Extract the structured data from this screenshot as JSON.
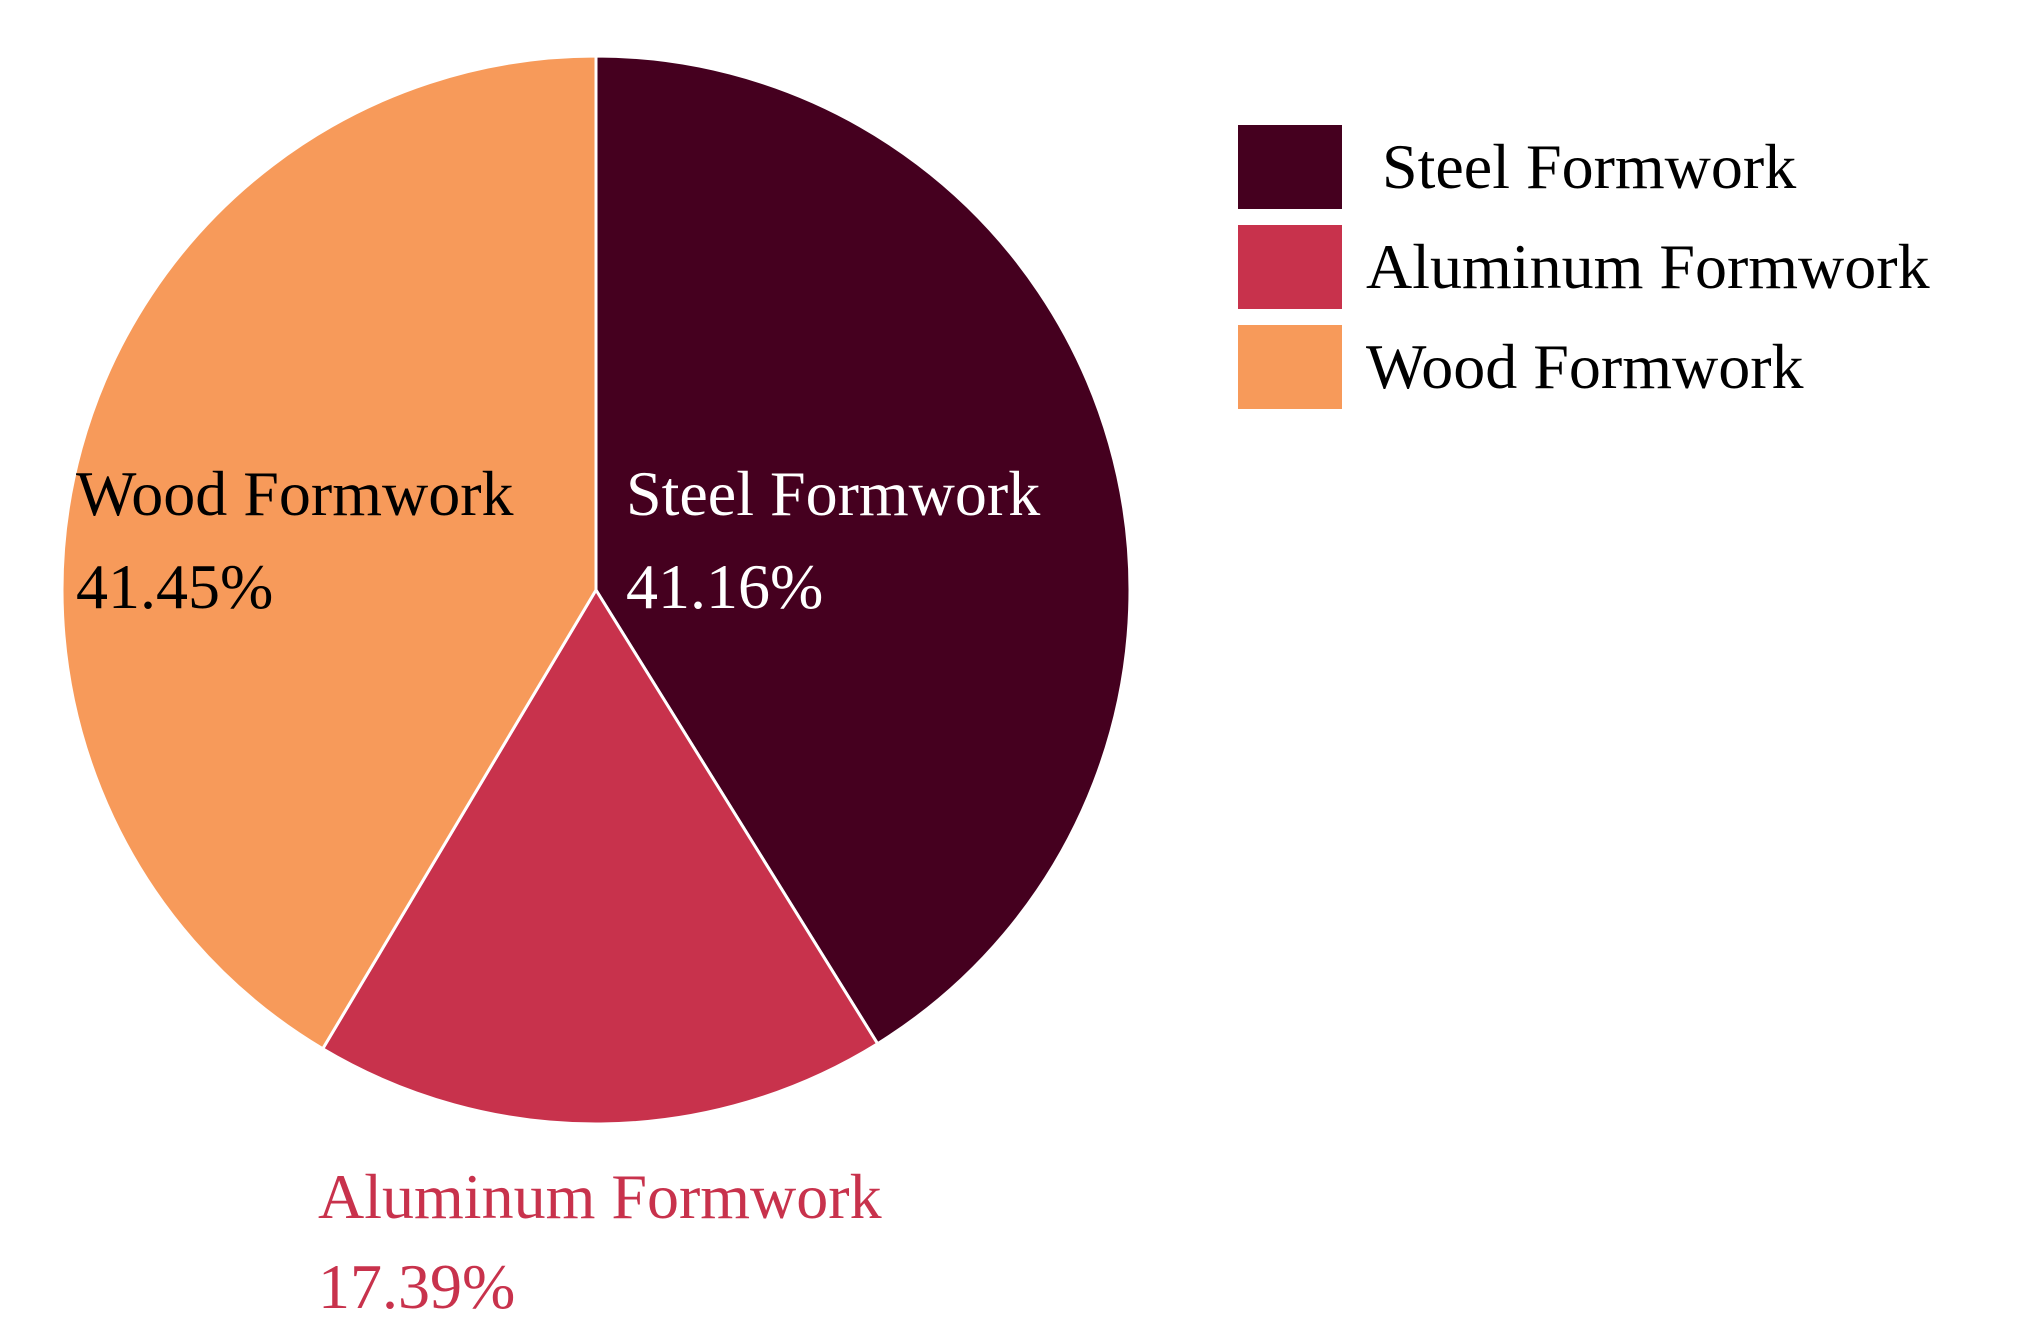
{
  "chart_data": {
    "type": "pie",
    "slices": [
      {
        "label": "Steel Formwork",
        "value": 41.16,
        "display": "41.16%",
        "color": "#45001f",
        "label_color": "#ffffff"
      },
      {
        "label": "Aluminum Formwork",
        "value": 17.39,
        "display": "17.39%",
        "color": "#c8324c",
        "label_color": "#c8324c"
      },
      {
        "label": "Wood Formwork",
        "value": 41.45,
        "display": "41.45%",
        "color": "#f79a5a",
        "label_color": "#000000"
      }
    ],
    "legend": {
      "placement": "top-right",
      "entries": [
        "Steel Formwork",
        "Aluminum Formwork",
        "Wood Formwork"
      ]
    },
    "start_angle_deg": 0,
    "direction": "clockwise"
  }
}
